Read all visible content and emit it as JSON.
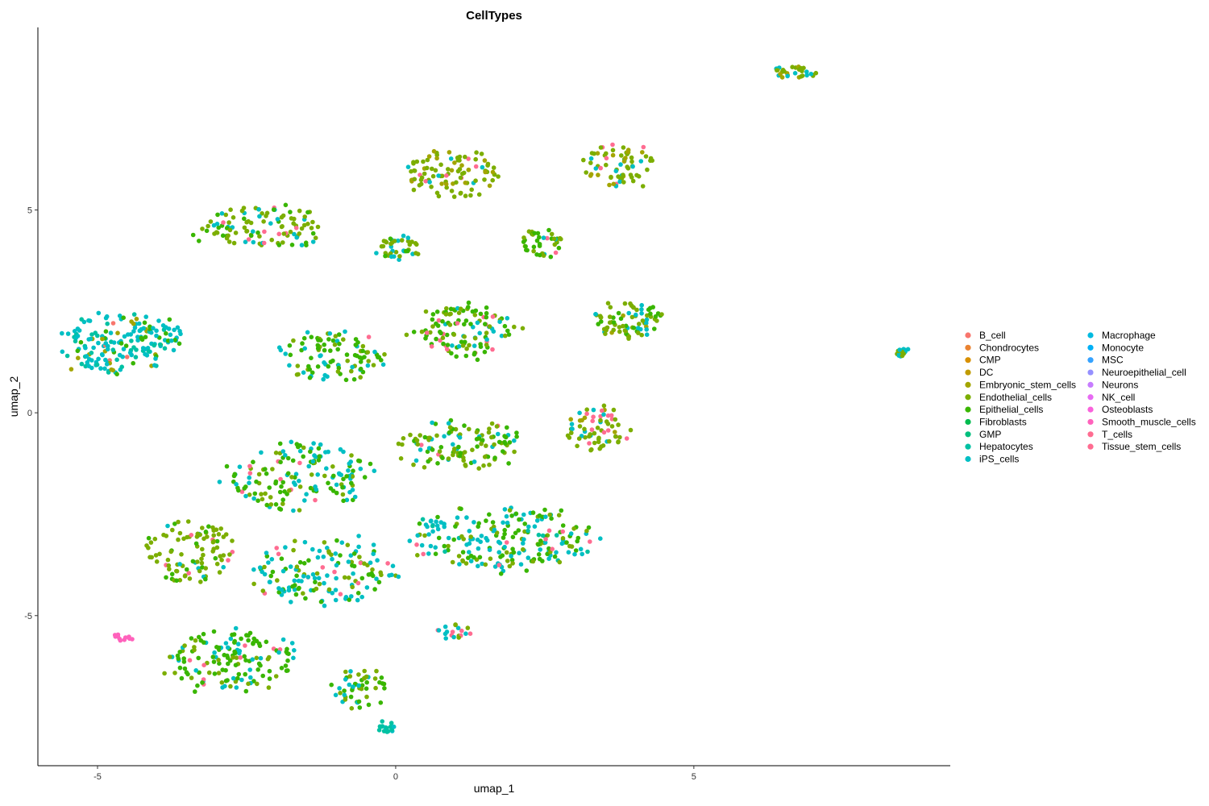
{
  "chart_data": {
    "type": "scatter",
    "title": "CellTypes",
    "xlabel": "umap_1",
    "ylabel": "umap_2",
    "xlim": [
      -6,
      9.3
    ],
    "ylim": [
      -8.7,
      9.5
    ],
    "x_ticks": [
      -5,
      0,
      5
    ],
    "y_ticks": [
      -5,
      0,
      5
    ],
    "grid": false,
    "legend_position": "right",
    "legend": [
      {
        "name": "B_cell",
        "color": "#F8766D"
      },
      {
        "name": "Chondrocytes",
        "color": "#EA8331"
      },
      {
        "name": "CMP",
        "color": "#D89000"
      },
      {
        "name": "DC",
        "color": "#C09B00"
      },
      {
        "name": "Embryonic_stem_cells",
        "color": "#A3A500"
      },
      {
        "name": "Endothelial_cells",
        "color": "#7CAE00"
      },
      {
        "name": "Epithelial_cells",
        "color": "#39B600"
      },
      {
        "name": "Fibroblasts",
        "color": "#00BB4E"
      },
      {
        "name": "GMP",
        "color": "#00BF7D"
      },
      {
        "name": "Hepatocytes",
        "color": "#00C1A3"
      },
      {
        "name": "iPS_cells",
        "color": "#00BFC4"
      },
      {
        "name": "Macrophage",
        "color": "#00BAE0"
      },
      {
        "name": "Monocyte",
        "color": "#00B0F6"
      },
      {
        "name": "MSC",
        "color": "#35A2FF"
      },
      {
        "name": "Neuroepithelial_cell",
        "color": "#9590FF"
      },
      {
        "name": "Neurons",
        "color": "#C77CFF"
      },
      {
        "name": "NK_cell",
        "color": "#E76BF3"
      },
      {
        "name": "Osteoblasts",
        "color": "#FA62DB"
      },
      {
        "name": "Smooth_muscle_cells",
        "color": "#FF62BC"
      },
      {
        "name": "T_cells",
        "color": "#FF6C91"
      },
      {
        "name": "Tissue_stem_cells",
        "color": "#FF6C91"
      }
    ],
    "clusters": [
      {
        "cx": -4.7,
        "cy": 1.7,
        "rx": 0.9,
        "ry": 0.75,
        "n": 150,
        "mix": {
          "iPS_cells": 0.55,
          "Hepatocytes": 0.2,
          "Embryonic_stem_cells": 0.15,
          "Epithelial_cells": 0.07,
          "B_cell": 0.03
        }
      },
      {
        "cx": -3.9,
        "cy": 1.9,
        "rx": 0.4,
        "ry": 0.4,
        "n": 30,
        "mix": {
          "iPS_cells": 0.7,
          "Epithelial_cells": 0.3
        }
      },
      {
        "cx": -2.2,
        "cy": 4.6,
        "rx": 1.1,
        "ry": 0.55,
        "n": 110,
        "mix": {
          "Endothelial_cells": 0.55,
          "Epithelial_cells": 0.25,
          "iPS_cells": 0.15,
          "T_cells": 0.05
        }
      },
      {
        "cx": 0.0,
        "cy": 4.05,
        "rx": 0.4,
        "ry": 0.3,
        "n": 40,
        "mix": {
          "iPS_cells": 0.45,
          "Endothelial_cells": 0.45,
          "Epithelial_cells": 0.1
        }
      },
      {
        "cx": 0.95,
        "cy": 5.9,
        "rx": 0.75,
        "ry": 0.55,
        "n": 100,
        "mix": {
          "Endothelial_cells": 0.6,
          "Embryonic_stem_cells": 0.25,
          "T_cells": 0.08,
          "iPS_cells": 0.07
        }
      },
      {
        "cx": 3.75,
        "cy": 6.1,
        "rx": 0.6,
        "ry": 0.55,
        "n": 70,
        "mix": {
          "Endothelial_cells": 0.55,
          "Embryonic_stem_cells": 0.2,
          "iPS_cells": 0.12,
          "T_cells": 0.13
        }
      },
      {
        "cx": 6.7,
        "cy": 8.4,
        "rx": 0.35,
        "ry": 0.15,
        "n": 30,
        "mix": {
          "Endothelial_cells": 0.6,
          "iPS_cells": 0.25,
          "Embryonic_stem_cells": 0.15
        }
      },
      {
        "cx": 8.5,
        "cy": 1.5,
        "rx": 0.12,
        "ry": 0.1,
        "n": 20,
        "mix": {
          "iPS_cells": 0.6,
          "Endothelial_cells": 0.3,
          "B_cell": 0.1
        }
      },
      {
        "cx": 2.45,
        "cy": 4.2,
        "rx": 0.35,
        "ry": 0.35,
        "n": 40,
        "mix": {
          "Epithelial_cells": 0.5,
          "Endothelial_cells": 0.3,
          "T_cells": 0.1,
          "iPS_cells": 0.1
        }
      },
      {
        "cx": 1.1,
        "cy": 2.0,
        "rx": 0.9,
        "ry": 0.65,
        "n": 120,
        "mix": {
          "Epithelial_cells": 0.45,
          "Endothelial_cells": 0.3,
          "iPS_cells": 0.15,
          "T_cells": 0.1
        }
      },
      {
        "cx": 3.9,
        "cy": 2.3,
        "rx": 0.55,
        "ry": 0.5,
        "n": 80,
        "mix": {
          "Endothelial_cells": 0.5,
          "Epithelial_cells": 0.25,
          "iPS_cells": 0.2,
          "Embryonic_stem_cells": 0.05
        }
      },
      {
        "cx": -1.1,
        "cy": 1.4,
        "rx": 0.85,
        "ry": 0.65,
        "n": 100,
        "mix": {
          "Epithelial_cells": 0.5,
          "iPS_cells": 0.3,
          "Endothelial_cells": 0.15,
          "T_cells": 0.05
        }
      },
      {
        "cx": 3.35,
        "cy": -0.35,
        "rx": 0.55,
        "ry": 0.55,
        "n": 70,
        "mix": {
          "Endothelial_cells": 0.55,
          "iPS_cells": 0.2,
          "T_cells": 0.15,
          "Embryonic_stem_cells": 0.1
        }
      },
      {
        "cx": 1.1,
        "cy": -0.8,
        "rx": 1.0,
        "ry": 0.6,
        "n": 120,
        "mix": {
          "Endothelial_cells": 0.5,
          "Epithelial_cells": 0.3,
          "iPS_cells": 0.15,
          "T_cells": 0.05
        }
      },
      {
        "cx": -1.6,
        "cy": -1.6,
        "rx": 1.2,
        "ry": 0.8,
        "n": 160,
        "mix": {
          "Epithelial_cells": 0.45,
          "iPS_cells": 0.3,
          "Endothelial_cells": 0.2,
          "T_cells": 0.05
        }
      },
      {
        "cx": 1.7,
        "cy": -3.1,
        "rx": 1.6,
        "ry": 0.75,
        "n": 220,
        "mix": {
          "iPS_cells": 0.45,
          "Epithelial_cells": 0.3,
          "Endothelial_cells": 0.15,
          "Hepatocytes": 0.05,
          "T_cells": 0.05
        }
      },
      {
        "cx": -3.45,
        "cy": -3.4,
        "rx": 0.75,
        "ry": 0.8,
        "n": 100,
        "mix": {
          "Endothelial_cells": 0.65,
          "Epithelial_cells": 0.2,
          "iPS_cells": 0.1,
          "T_cells": 0.05
        }
      },
      {
        "cx": -1.2,
        "cy": -3.9,
        "rx": 1.2,
        "ry": 0.85,
        "n": 150,
        "mix": {
          "iPS_cells": 0.45,
          "Epithelial_cells": 0.3,
          "Endothelial_cells": 0.2,
          "T_cells": 0.05
        }
      },
      {
        "cx": -2.7,
        "cy": -6.1,
        "rx": 1.1,
        "ry": 0.75,
        "n": 150,
        "mix": {
          "Epithelial_cells": 0.5,
          "Endothelial_cells": 0.25,
          "iPS_cells": 0.2,
          "T_cells": 0.05
        }
      },
      {
        "cx": -0.6,
        "cy": -6.8,
        "rx": 0.45,
        "ry": 0.5,
        "n": 50,
        "mix": {
          "Endothelial_cells": 0.4,
          "Epithelial_cells": 0.3,
          "iPS_cells": 0.3
        }
      },
      {
        "cx": 1.0,
        "cy": -5.4,
        "rx": 0.3,
        "ry": 0.2,
        "n": 20,
        "mix": {
          "iPS_cells": 0.5,
          "Endothelial_cells": 0.3,
          "T_cells": 0.2
        }
      },
      {
        "cx": -0.15,
        "cy": -7.75,
        "rx": 0.15,
        "ry": 0.15,
        "n": 15,
        "mix": {
          "Hepatocytes": 0.8,
          "iPS_cells": 0.2
        }
      },
      {
        "cx": -4.6,
        "cy": -5.55,
        "rx": 0.18,
        "ry": 0.08,
        "n": 12,
        "mix": {
          "Smooth_muscle_cells": 1.0
        }
      }
    ]
  }
}
